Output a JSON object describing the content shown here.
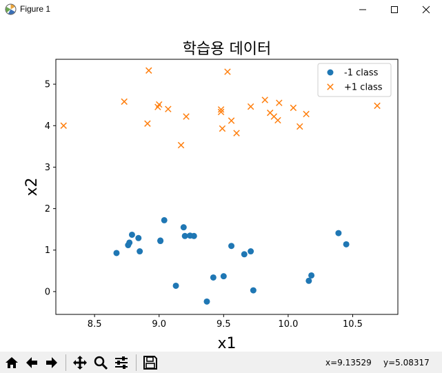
{
  "window": {
    "title": "Figure 1"
  },
  "chart_data": {
    "type": "scatter",
    "title": "학습용 데이터",
    "xlabel": "x1",
    "ylabel": "x2",
    "xlim": [
      8.2,
      10.85
    ],
    "ylim": [
      -0.55,
      5.6
    ],
    "xticks": [
      8.5,
      9.0,
      9.5,
      10.0,
      10.5
    ],
    "xtick_labels": [
      "8.5",
      "9.0",
      "9.5",
      "10.0",
      "10.5"
    ],
    "yticks": [
      0,
      1,
      2,
      3,
      4,
      5
    ],
    "ytick_labels": [
      "0",
      "1",
      "2",
      "3",
      "4",
      "5"
    ],
    "grid": false,
    "legend_position": "upper-right",
    "series": [
      {
        "name": "-1 class",
        "marker": "circle",
        "color": "#1f77b4",
        "points": [
          [
            8.67,
            0.93
          ],
          [
            8.76,
            1.12
          ],
          [
            8.77,
            1.18
          ],
          [
            8.79,
            1.37
          ],
          [
            8.84,
            1.29
          ],
          [
            8.85,
            0.97
          ],
          [
            9.01,
            1.23
          ],
          [
            9.01,
            1.22
          ],
          [
            9.04,
            1.72
          ],
          [
            9.13,
            0.14
          ],
          [
            9.19,
            1.55
          ],
          [
            9.2,
            1.34
          ],
          [
            9.24,
            1.35
          ],
          [
            9.27,
            1.34
          ],
          [
            9.37,
            -0.24
          ],
          [
            9.42,
            0.34
          ],
          [
            9.5,
            0.37
          ],
          [
            9.56,
            1.1
          ],
          [
            9.66,
            0.9
          ],
          [
            9.71,
            0.97
          ],
          [
            9.73,
            0.03
          ],
          [
            10.16,
            0.26
          ],
          [
            10.18,
            0.39
          ],
          [
            10.39,
            1.41
          ],
          [
            10.45,
            1.14
          ]
        ]
      },
      {
        "name": "+1 class",
        "marker": "x",
        "color": "#ff7f0e",
        "points": [
          [
            8.26,
            4.0
          ],
          [
            8.73,
            4.58
          ],
          [
            8.91,
            4.05
          ],
          [
            8.92,
            5.33
          ],
          [
            8.99,
            4.45
          ],
          [
            9.0,
            4.51
          ],
          [
            9.07,
            4.4
          ],
          [
            9.17,
            3.53
          ],
          [
            9.21,
            4.22
          ],
          [
            9.48,
            4.33
          ],
          [
            9.48,
            4.39
          ],
          [
            9.49,
            3.93
          ],
          [
            9.53,
            5.3
          ],
          [
            9.56,
            4.12
          ],
          [
            9.6,
            3.82
          ],
          [
            9.71,
            4.46
          ],
          [
            9.82,
            4.62
          ],
          [
            9.86,
            4.31
          ],
          [
            9.89,
            4.22
          ],
          [
            9.92,
            4.13
          ],
          [
            9.93,
            4.55
          ],
          [
            10.04,
            4.43
          ],
          [
            10.09,
            3.98
          ],
          [
            10.14,
            4.28
          ],
          [
            10.69,
            4.48
          ]
        ]
      }
    ]
  },
  "toolbar": {
    "buttons": [
      "home",
      "back",
      "forward",
      "pan",
      "zoom",
      "configure",
      "save"
    ],
    "coord_x": "x=9.13529",
    "coord_y": "y=5.08317"
  }
}
